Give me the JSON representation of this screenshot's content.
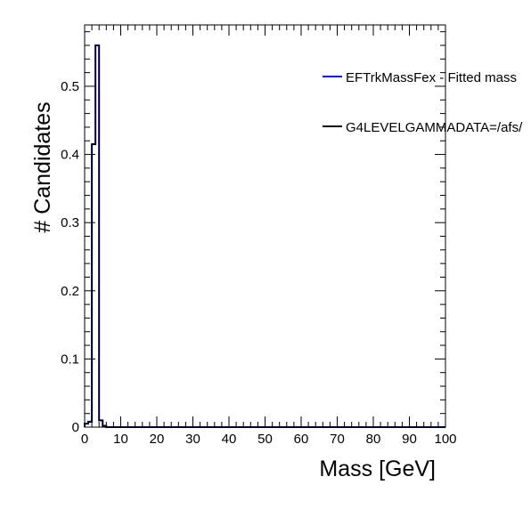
{
  "chart_data": {
    "type": "histogram",
    "xlabel": "Mass [GeV]",
    "ylabel": "# Candidates",
    "xlim": [
      0,
      100
    ],
    "ylim": [
      0,
      0.59
    ],
    "x_ticks": [
      0,
      10,
      20,
      30,
      40,
      50,
      60,
      70,
      80,
      90,
      100
    ],
    "y_ticks": [
      0,
      0.1,
      0.2,
      0.3,
      0.4,
      0.5
    ],
    "y_tick_labels": [
      "0",
      "0.1",
      "0.2",
      "0.3",
      "0.4",
      "0.5"
    ],
    "grid": false,
    "legend_placement": "top-right",
    "bin_width": 1,
    "series": [
      {
        "name": "EFTrkMassFex - Fitted mass",
        "color": "#0000cc",
        "x": [
          0,
          1,
          2,
          3,
          4,
          5
        ],
        "values": [
          0.005,
          0.008,
          0.415,
          0.56,
          0.01,
          0.002
        ]
      },
      {
        "name": "G4LEVELGAMMADATA=/afs/",
        "color": "#000000",
        "x": [
          0,
          1,
          2,
          3,
          4,
          5
        ],
        "values": [
          0.005,
          0.008,
          0.415,
          0.56,
          0.01,
          0.002
        ]
      }
    ]
  }
}
